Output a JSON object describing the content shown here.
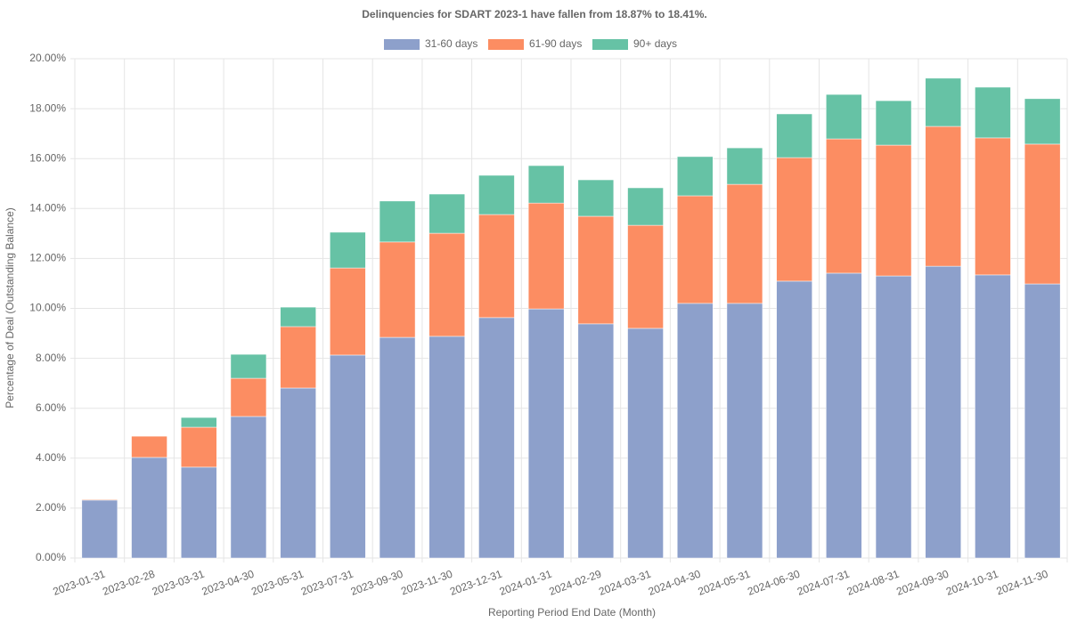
{
  "chart_data": {
    "type": "stacked_bar",
    "title": "Delinquencies for SDART 2023-1 have fallen from 18.87% to 18.41%.",
    "x_label": "Reporting Period End Date (Month)",
    "y_label": "Percentage of Deal (Outstanding Balance)",
    "categories": [
      "2023-01-31",
      "2023-02-28",
      "2023-03-31",
      "2023-04-30",
      "2023-05-31",
      "2023-07-31",
      "2023-09-30",
      "2023-11-30",
      "2023-12-31",
      "2024-01-31",
      "2024-02-29",
      "2024-03-31",
      "2024-04-30",
      "2024-05-31",
      "2024-06-30",
      "2024-07-31",
      "2024-08-31",
      "2024-09-30",
      "2024-10-31",
      "2024-11-30"
    ],
    "series": [
      {
        "name": "31-60 days",
        "color": "#8da0cb",
        "values": [
          2.32,
          4.03,
          3.64,
          5.67,
          6.81,
          8.13,
          8.84,
          8.88,
          9.63,
          9.98,
          9.38,
          9.2,
          10.2,
          10.2,
          11.09,
          11.41,
          11.3,
          11.69,
          11.34,
          10.98
        ]
      },
      {
        "name": "61-90 days",
        "color": "#fc8d62",
        "values": [
          0.03,
          0.85,
          1.6,
          1.53,
          2.46,
          3.49,
          3.82,
          4.13,
          4.13,
          4.24,
          4.31,
          4.13,
          4.31,
          4.77,
          4.95,
          5.38,
          5.24,
          5.6,
          5.49,
          5.6
        ]
      },
      {
        "name": "90+ days",
        "color": "#66c2a5",
        "values": [
          0,
          0,
          0.39,
          0.96,
          0.78,
          1.43,
          1.64,
          1.57,
          1.57,
          1.5,
          1.46,
          1.5,
          1.57,
          1.46,
          1.75,
          1.78,
          1.78,
          1.93,
          2.03,
          1.82
        ]
      }
    ],
    "ylim": [
      0,
      20
    ],
    "yticks": [
      {
        "value": 0,
        "label": "0.00%"
      },
      {
        "value": 2,
        "label": "2.00%"
      },
      {
        "value": 4,
        "label": "4.00%"
      },
      {
        "value": 6,
        "label": "6.00%"
      },
      {
        "value": 8,
        "label": "8.00%"
      },
      {
        "value": 10,
        "label": "10.00%"
      },
      {
        "value": 12,
        "label": "12.00%"
      },
      {
        "value": 14,
        "label": "14.00%"
      },
      {
        "value": 16,
        "label": "16.00%"
      },
      {
        "value": 18,
        "label": "18.00%"
      },
      {
        "value": 20,
        "label": "20.00%"
      }
    ],
    "grid": true,
    "legend": "top"
  }
}
